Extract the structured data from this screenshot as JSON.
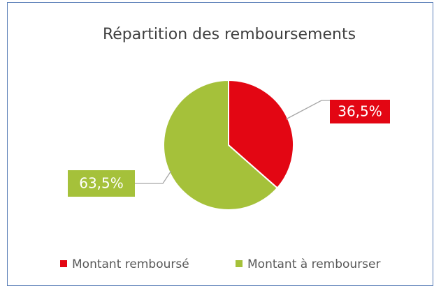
{
  "chart_data": {
    "type": "pie",
    "title": "Répartition des remboursements",
    "categories": [
      "Montant remboursé",
      "Montant à rembourser"
    ],
    "values": [
      36.5,
      63.5
    ],
    "value_labels": [
      "36,5%",
      "63,5%"
    ],
    "colors": [
      "#e30613",
      "#a5c13a"
    ],
    "legend": "bottom"
  }
}
